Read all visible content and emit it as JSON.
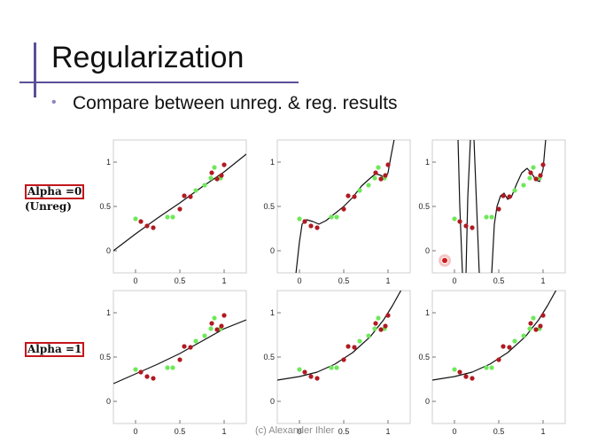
{
  "slide": {
    "title": "Regularization",
    "bullet": "Compare between unreg. & reg. results",
    "credit": "(c) Alexander Ihler",
    "cursor_color": "#d01b1b"
  },
  "rows": [
    {
      "label": "Alpha =0",
      "sublabel": "(Unreg)"
    },
    {
      "label": "Alpha =1",
      "sublabel": ""
    }
  ],
  "chart_data": {
    "type": "scatter",
    "layout_grid": "2 rows x 3 columns",
    "xlim": [
      -0.25,
      1.25
    ],
    "ylim": [
      -0.25,
      1.25
    ],
    "x_ticks": [
      "0",
      "0.5",
      "1"
    ],
    "y_ticks": [
      "0",
      "0.5",
      "1"
    ],
    "colors": {
      "train": "#b01a22",
      "test": "#6ee85a",
      "fit": "#111111"
    },
    "train_points": [
      {
        "x": 0.06,
        "y": 0.33
      },
      {
        "x": 0.13,
        "y": 0.28
      },
      {
        "x": 0.2,
        "y": 0.26
      },
      {
        "x": 0.5,
        "y": 0.47
      },
      {
        "x": 0.55,
        "y": 0.62
      },
      {
        "x": 0.62,
        "y": 0.61
      },
      {
        "x": 0.86,
        "y": 0.88
      },
      {
        "x": 0.92,
        "y": 0.81
      },
      {
        "x": 0.97,
        "y": 0.85
      },
      {
        "x": 1.0,
        "y": 0.97
      }
    ],
    "test_points": [
      {
        "x": 0.0,
        "y": 0.36
      },
      {
        "x": 0.36,
        "y": 0.38
      },
      {
        "x": 0.42,
        "y": 0.38
      },
      {
        "x": 0.68,
        "y": 0.68
      },
      {
        "x": 0.78,
        "y": 0.74
      },
      {
        "x": 0.85,
        "y": 0.82
      },
      {
        "x": 0.89,
        "y": 0.94
      },
      {
        "x": 0.96,
        "y": 0.82
      }
    ],
    "panels": [
      {
        "row": 0,
        "col": 0,
        "fit": [
          [
            -0.25,
            0.0
          ],
          [
            0.0,
            0.19
          ],
          [
            0.25,
            0.37
          ],
          [
            0.5,
            0.54
          ],
          [
            0.75,
            0.72
          ],
          [
            1.0,
            0.89
          ],
          [
            1.25,
            1.09
          ]
        ]
      },
      {
        "row": 0,
        "col": 1,
        "fit": [
          [
            -0.04,
            -0.26
          ],
          [
            0.0,
            0.1
          ],
          [
            0.03,
            0.3
          ],
          [
            0.08,
            0.35
          ],
          [
            0.15,
            0.33
          ],
          [
            0.22,
            0.3
          ],
          [
            0.3,
            0.34
          ],
          [
            0.4,
            0.42
          ],
          [
            0.5,
            0.5
          ],
          [
            0.6,
            0.6
          ],
          [
            0.7,
            0.73
          ],
          [
            0.8,
            0.82
          ],
          [
            0.86,
            0.87
          ],
          [
            0.92,
            0.85
          ],
          [
            0.97,
            0.82
          ],
          [
            1.0,
            0.88
          ],
          [
            1.03,
            1.05
          ],
          [
            1.07,
            1.26
          ]
        ]
      },
      {
        "row": 0,
        "col": 2,
        "fit": [
          [
            0.04,
            1.26
          ],
          [
            0.06,
            0.5
          ],
          [
            0.09,
            -0.26
          ],
          [
            0.13,
            -0.26
          ],
          [
            0.15,
            0.6
          ],
          [
            0.18,
            1.26
          ],
          [
            0.22,
            1.26
          ],
          [
            0.25,
            0.5
          ],
          [
            0.28,
            -0.26
          ],
          [
            0.42,
            -0.26
          ],
          [
            0.45,
            0.3
          ],
          [
            0.48,
            0.5
          ],
          [
            0.52,
            0.62
          ],
          [
            0.56,
            0.65
          ],
          [
            0.6,
            0.58
          ],
          [
            0.64,
            0.6
          ],
          [
            0.7,
            0.75
          ],
          [
            0.76,
            0.88
          ],
          [
            0.82,
            0.93
          ],
          [
            0.88,
            0.86
          ],
          [
            0.92,
            0.8
          ],
          [
            0.96,
            0.78
          ],
          [
            1.0,
            0.92
          ],
          [
            1.03,
            1.26
          ]
        ]
      },
      {
        "row": 1,
        "col": 0,
        "fit": [
          [
            -0.25,
            0.2
          ],
          [
            0.0,
            0.31
          ],
          [
            0.25,
            0.42
          ],
          [
            0.5,
            0.54
          ],
          [
            0.75,
            0.68
          ],
          [
            1.0,
            0.82
          ],
          [
            1.25,
            0.92
          ]
        ]
      },
      {
        "row": 1,
        "col": 1,
        "fit": [
          [
            -0.25,
            0.24
          ],
          [
            0.0,
            0.28
          ],
          [
            0.2,
            0.33
          ],
          [
            0.4,
            0.42
          ],
          [
            0.6,
            0.55
          ],
          [
            0.8,
            0.73
          ],
          [
            0.95,
            0.92
          ],
          [
            1.05,
            1.08
          ],
          [
            1.15,
            1.26
          ]
        ]
      },
      {
        "row": 1,
        "col": 2,
        "fit": [
          [
            -0.25,
            0.24
          ],
          [
            0.0,
            0.28
          ],
          [
            0.2,
            0.33
          ],
          [
            0.4,
            0.42
          ],
          [
            0.6,
            0.55
          ],
          [
            0.8,
            0.73
          ],
          [
            0.95,
            0.92
          ],
          [
            1.05,
            1.08
          ],
          [
            1.15,
            1.26
          ]
        ]
      }
    ]
  }
}
